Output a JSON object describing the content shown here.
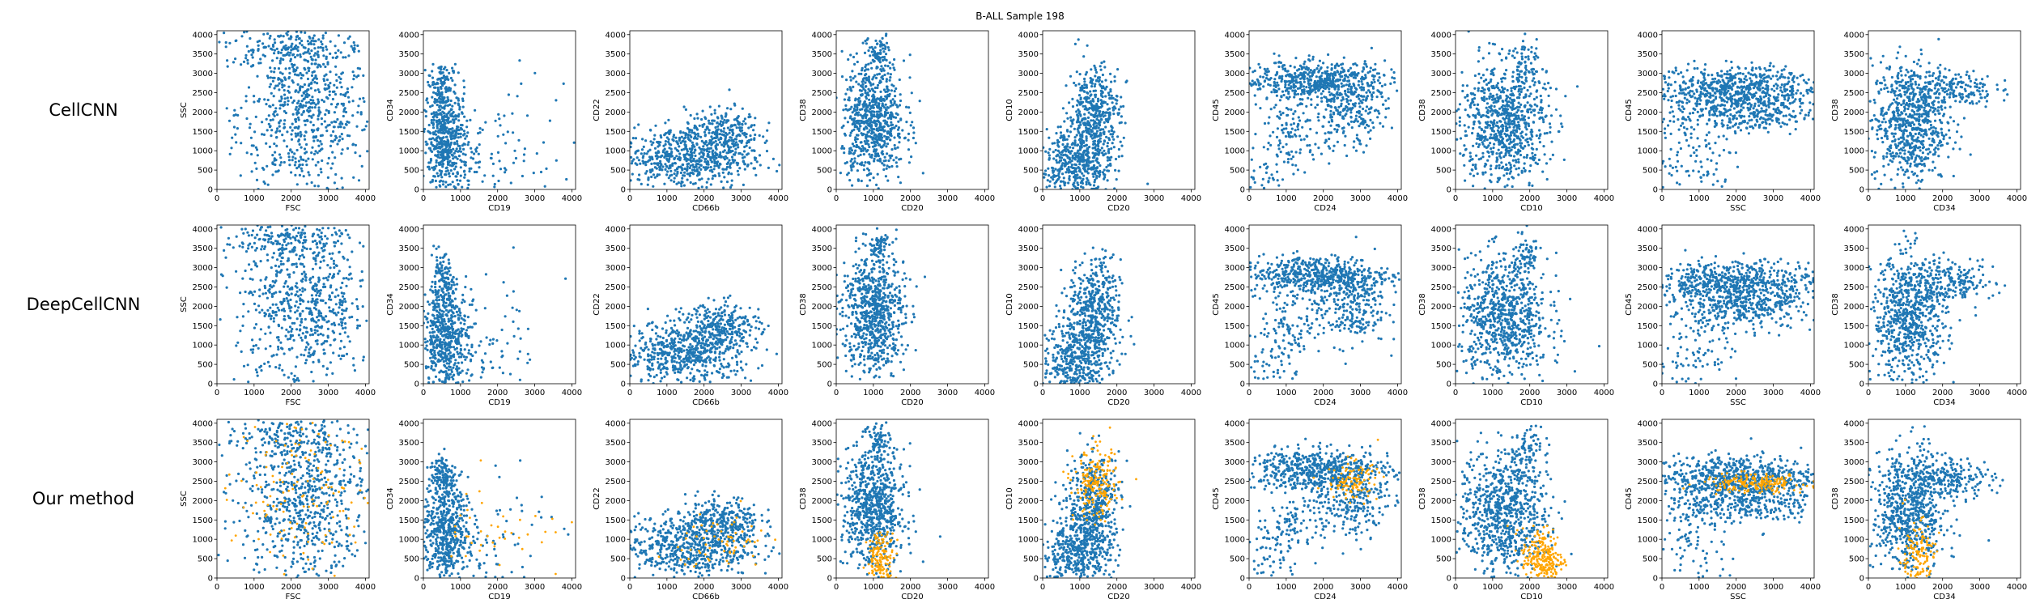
{
  "title": "B-ALL Sample 198",
  "row_labels": [
    "CellCNN",
    "DeepCellCNN",
    "Our method"
  ],
  "colors": {
    "background_cells": "#1f77b4",
    "selected_cells": "#ffa500"
  },
  "chart_data": {
    "type": "scatter",
    "title": "B-ALL Sample 198",
    "rows": [
      "CellCNN",
      "DeepCellCNN",
      "Our method"
    ],
    "xlim": [
      0,
      4100
    ],
    "ylim": [
      0,
      4100
    ],
    "ticks": [
      0,
      500,
      1000,
      1500,
      2000,
      2500,
      3000,
      3500,
      4000
    ],
    "x_tick_labels": [
      "0",
      "1000",
      "2000",
      "3000",
      "4000"
    ],
    "y_tick_labels": [
      "0",
      "500",
      "1000",
      "1500",
      "2000",
      "2500",
      "3000",
      "3500",
      "4000"
    ],
    "grid": false,
    "series": [
      {
        "name": "",
        "color": "#1f77b4"
      },
      {
        "name": "",
        "color": "#ffa500"
      }
    ],
    "panels": [
      {
        "xlabel": "FSC",
        "ylabel": "SSC",
        "clusters": [
          {
            "cx": 2350,
            "cy": 2000,
            "sx": 900,
            "sy": 1100,
            "n": 700
          },
          {
            "cx": 1800,
            "cy": 3700,
            "sx": 800,
            "sy": 250,
            "n": 150
          }
        ],
        "selected": {
          "Our method": {
            "cx": 2300,
            "cy": 2400,
            "sx": 900,
            "sy": 1100,
            "n": 140
          }
        }
      },
      {
        "xlabel": "CD19",
        "ylabel": "CD34",
        "clusters": [
          {
            "cx": 600,
            "cy": 1200,
            "sx": 300,
            "sy": 700,
            "n": 550
          },
          {
            "cx": 500,
            "cy": 2700,
            "sx": 150,
            "sy": 300,
            "n": 100
          },
          {
            "cx": 1600,
            "cy": 700,
            "sx": 600,
            "sy": 600,
            "n": 60
          },
          {
            "cx": 2500,
            "cy": 1500,
            "sx": 900,
            "sy": 900,
            "n": 25
          }
        ],
        "selected": {
          "Our method": {
            "cx": 2000,
            "cy": 1300,
            "sx": 900,
            "sy": 700,
            "n": 45
          }
        }
      },
      {
        "xlabel": "CD66b",
        "ylabel": "CD22",
        "clusters": [
          {
            "cx": 1500,
            "cy": 800,
            "sx": 900,
            "sy": 400,
            "n": 600
          },
          {
            "cx": 2500,
            "cy": 1500,
            "sx": 500,
            "sy": 300,
            "n": 250
          }
        ],
        "selected": {
          "Our method": {
            "cx": 2500,
            "cy": 900,
            "sx": 600,
            "sy": 400,
            "n": 70
          }
        }
      },
      {
        "xlabel": "CD20",
        "ylabel": "CD38",
        "clusters": [
          {
            "cx": 1000,
            "cy": 1800,
            "sx": 420,
            "sy": 800,
            "n": 750
          },
          {
            "cx": 1150,
            "cy": 3500,
            "sx": 120,
            "sy": 200,
            "n": 60
          }
        ],
        "selected": {
          "Our method": {
            "cx": 1200,
            "cy": 500,
            "sx": 180,
            "sy": 350,
            "n": 160
          }
        }
      },
      {
        "xlabel": "CD20",
        "ylabel": "CD10",
        "clusters": [
          {
            "cx": 900,
            "cy": 600,
            "sx": 450,
            "sy": 500,
            "n": 450
          },
          {
            "cx": 1400,
            "cy": 1900,
            "sx": 350,
            "sy": 650,
            "n": 450
          }
        ],
        "selected": {
          "Our method": {
            "cx": 1450,
            "cy": 2400,
            "sx": 300,
            "sy": 450,
            "n": 200
          }
        }
      },
      {
        "xlabel": "CD24",
        "ylabel": "CD45",
        "clusters": [
          {
            "cx": 1800,
            "cy": 2800,
            "sx": 1000,
            "sy": 250,
            "n": 550
          },
          {
            "cx": 2700,
            "cy": 2000,
            "sx": 500,
            "sy": 500,
            "n": 250
          },
          {
            "cx": 1200,
            "cy": 1500,
            "sx": 400,
            "sy": 400,
            "n": 90
          },
          {
            "cx": 600,
            "cy": 600,
            "sx": 400,
            "sy": 500,
            "n": 60
          }
        ],
        "selected": {
          "Our method": {
            "cx": 2800,
            "cy": 2500,
            "sx": 350,
            "sy": 250,
            "n": 110
          }
        }
      },
      {
        "xlabel": "CD10",
        "ylabel": "CD38",
        "clusters": [
          {
            "cx": 1300,
            "cy": 1700,
            "sx": 600,
            "sy": 800,
            "n": 800
          },
          {
            "cx": 1900,
            "cy": 3300,
            "sx": 200,
            "sy": 300,
            "n": 60
          }
        ],
        "selected": {
          "Our method": {
            "cx": 2350,
            "cy": 500,
            "sx": 280,
            "sy": 400,
            "n": 260
          }
        }
      },
      {
        "xlabel": "SSC",
        "ylabel": "CD45",
        "clusters": [
          {
            "cx": 2000,
            "cy": 2600,
            "sx": 1100,
            "sy": 280,
            "n": 650
          },
          {
            "cx": 2100,
            "cy": 1900,
            "sx": 1000,
            "sy": 250,
            "n": 300
          },
          {
            "cx": 800,
            "cy": 800,
            "sx": 700,
            "sy": 600,
            "n": 100
          }
        ],
        "selected": {
          "Our method": {
            "cx": 2500,
            "cy": 2450,
            "sx": 700,
            "sy": 120,
            "n": 200
          }
        }
      },
      {
        "xlabel": "CD34",
        "ylabel": "CD38",
        "clusters": [
          {
            "cx": 1100,
            "cy": 1700,
            "sx": 500,
            "sy": 800,
            "n": 700
          },
          {
            "cx": 2200,
            "cy": 2600,
            "sx": 600,
            "sy": 250,
            "n": 200
          }
        ],
        "selected": {
          "Our method": {
            "cx": 1300,
            "cy": 500,
            "sx": 250,
            "sy": 500,
            "n": 160
          }
        }
      }
    ]
  }
}
